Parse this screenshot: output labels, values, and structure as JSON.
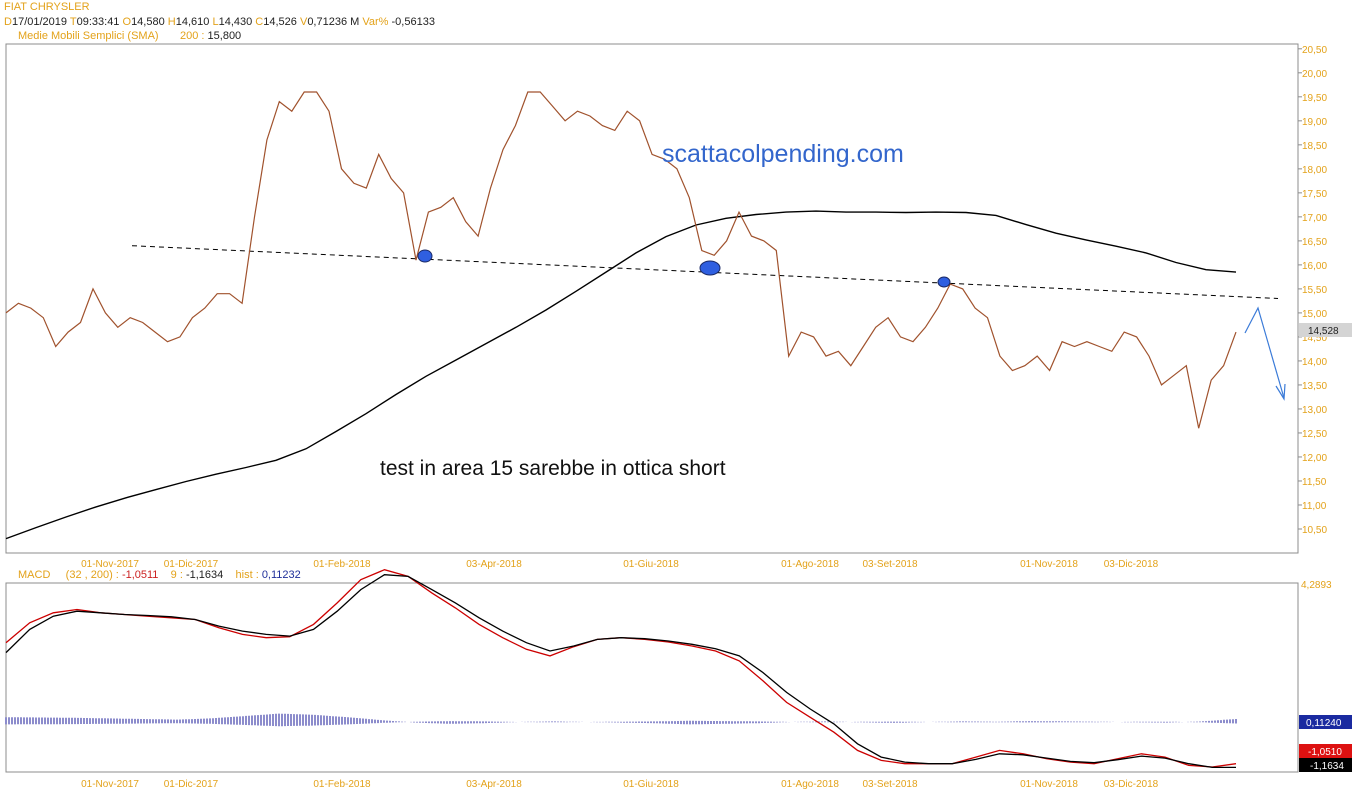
{
  "header": {
    "instrument": "FIAT CHRYSLER",
    "date_prefix": "D",
    "date": "17/01/2019",
    "time_prefix": "T",
    "time": "09:33:41",
    "open_prefix": "O",
    "open": "14,580",
    "high_prefix": "H",
    "high": "14,610",
    "low_prefix": "L",
    "low": "14,430",
    "close_prefix": "C",
    "close": "14,526",
    "volume_prefix": "V",
    "volume": "0,71236 M",
    "var_prefix": "Var%",
    "var": "-0,56133",
    "sma_label": "Medie Mobili Semplici (SMA)",
    "sma_period": "200 :",
    "sma_value": "15,800"
  },
  "macd_header": {
    "label": "MACD",
    "params": "(32 , 200) :",
    "macd_value": "-1,0511",
    "signal_period": "9 :",
    "signal_value": "-1,1634",
    "hist_label": "hist :",
    "hist_value": "0,11232"
  },
  "annotations": {
    "watermark": "scattacolpending.com",
    "comment": "test in area 15 sarebbe in ottica short"
  },
  "colors": {
    "price": "#a0522d",
    "sma": "#000000",
    "trendline": "#000000",
    "macd": "#cc0000",
    "signal": "#000000",
    "histogram": "#1a1a9a",
    "markers": "#2f5fe0",
    "forecast_arrow": "#3b7bd8",
    "label_text": "#e3a21a"
  },
  "chart_data": [
    {
      "type": "line",
      "title": "FIAT CHRYSLER",
      "x_ticks": [
        "01-Nov-2017",
        "01-Dic-2017",
        "01-Feb-2018",
        "03-Apr-2018",
        "01-Giu-2018",
        "01-Ago-2018",
        "03-Set-2018",
        "01-Nov-2018",
        "03-Dic-2018"
      ],
      "ylim": [
        10.0,
        20.6
      ],
      "y_ticks": [
        "10,50",
        "11,00",
        "11,50",
        "12,00",
        "12,50",
        "13,00",
        "13,50",
        "14,00",
        "14,50",
        "15,00",
        "15,50",
        "16,00",
        "16,50",
        "17,00",
        "17,50",
        "18,00",
        "18,50",
        "19,00",
        "19,50",
        "20,00",
        "20,50"
      ],
      "last_price_label": "14,528",
      "grid": false,
      "series": [
        {
          "name": "",
          "role": "price",
          "values": [
            15.0,
            15.2,
            15.1,
            14.9,
            14.3,
            14.6,
            14.8,
            15.5,
            15.0,
            14.7,
            14.9,
            14.8,
            14.6,
            14.4,
            14.5,
            14.9,
            15.1,
            15.4,
            15.4,
            15.2,
            17.0,
            18.6,
            19.4,
            19.2,
            19.6,
            19.6,
            19.2,
            18.0,
            17.7,
            17.6,
            18.3,
            17.8,
            17.5,
            16.1,
            17.1,
            17.2,
            17.4,
            16.9,
            16.6,
            17.6,
            18.4,
            18.9,
            19.6,
            19.6,
            19.3,
            19.0,
            19.2,
            19.1,
            18.9,
            18.8,
            19.2,
            19.0,
            18.3,
            18.2,
            18.0,
            17.4,
            16.3,
            16.2,
            16.5,
            17.1,
            16.6,
            16.5,
            16.3,
            14.1,
            14.6,
            14.5,
            14.1,
            14.2,
            13.9,
            14.3,
            14.7,
            14.9,
            14.5,
            14.4,
            14.7,
            15.1,
            15.6,
            15.5,
            15.1,
            14.9,
            14.1,
            13.8,
            13.9,
            14.1,
            13.8,
            14.4,
            14.3,
            14.4,
            14.3,
            14.2,
            14.6,
            14.5,
            14.1,
            13.5,
            13.7,
            13.9,
            12.6,
            13.6,
            13.9,
            14.6
          ]
        },
        {
          "name": "",
          "role": "sma",
          "period": 200,
          "values": [
            10.3,
            10.53,
            10.75,
            10.96,
            11.15,
            11.32,
            11.49,
            11.64,
            11.78,
            11.93,
            12.17,
            12.53,
            12.9,
            13.3,
            13.68,
            14.02,
            14.36,
            14.7,
            15.06,
            15.45,
            15.85,
            16.25,
            16.59,
            16.83,
            16.97,
            17.05,
            17.1,
            17.12,
            17.1,
            17.1,
            17.09,
            17.1,
            17.09,
            17.03,
            16.84,
            16.66,
            16.52,
            16.39,
            16.25,
            16.05,
            15.9,
            15.85
          ]
        },
        {
          "name": "",
          "role": "trendline",
          "points": [
            [
              0,
              16.4
            ],
            [
              99,
              15.3
            ]
          ]
        }
      ]
    },
    {
      "type": "line",
      "title": "MACD",
      "x_ticks": [
        "01-Nov-2017",
        "01-Dic-2017",
        "01-Feb-2018",
        "03-Apr-2018",
        "01-Giu-2018",
        "01-Ago-2018",
        "03-Set-2018",
        "01-Nov-2018",
        "03-Dic-2018"
      ],
      "ylim": [
        -1.3,
        4.4
      ],
      "y_label_top": "4,2893",
      "value_labels": {
        "hist": "0,11240",
        "macd": "-1,0510",
        "signal": "-1,1634"
      },
      "series": [
        {
          "name": "",
          "role": "macd",
          "values": [
            2.6,
            3.2,
            3.5,
            3.6,
            3.5,
            3.45,
            3.4,
            3.35,
            3.3,
            3.05,
            2.85,
            2.75,
            2.78,
            3.15,
            3.8,
            4.5,
            4.8,
            4.6,
            4.1,
            3.65,
            3.15,
            2.75,
            2.4,
            2.2,
            2.48,
            2.7,
            2.75,
            2.7,
            2.62,
            2.5,
            2.35,
            2.05,
            1.45,
            0.8,
            0.35,
            -0.1,
            -0.65,
            -0.95,
            -1.05,
            -1.05,
            -1.05,
            -0.85,
            -0.65,
            -0.75,
            -0.9,
            -1.0,
            -1.05,
            -0.9,
            -0.75,
            -0.85,
            -1.1,
            -1.15,
            -1.05
          ]
        },
        {
          "name": "",
          "role": "signal",
          "values": [
            2.3,
            3.0,
            3.4,
            3.55,
            3.5,
            3.45,
            3.42,
            3.38,
            3.3,
            3.1,
            2.95,
            2.85,
            2.8,
            3.0,
            3.55,
            4.2,
            4.65,
            4.6,
            4.2,
            3.8,
            3.35,
            2.95,
            2.6,
            2.35,
            2.5,
            2.7,
            2.75,
            2.72,
            2.65,
            2.55,
            2.42,
            2.2,
            1.7,
            1.1,
            0.6,
            0.15,
            -0.45,
            -0.85,
            -1.0,
            -1.05,
            -1.05,
            -0.92,
            -0.75,
            -0.78,
            -0.88,
            -0.98,
            -1.02,
            -0.93,
            -0.82,
            -0.88,
            -1.05,
            -1.16,
            -1.16
          ]
        },
        {
          "name": "",
          "role": "histogram",
          "values": [
            0.08,
            0.075,
            0.07,
            0.06,
            0.05,
            0.04,
            0.06,
            0.1,
            0.14,
            0.12,
            0.08,
            0.03,
            -0.01,
            -0.03,
            -0.02,
            0.0,
            0.01,
            0.0,
            -0.01,
            -0.02,
            -0.04,
            -0.03,
            -0.02,
            0.0,
            0.01,
            -0.005,
            -0.015,
            0.0,
            0.01,
            0.005,
            0.015,
            0.01,
            0.005,
            -0.005,
            -0.01,
            0.01,
            0.05
          ]
        }
      ]
    }
  ]
}
